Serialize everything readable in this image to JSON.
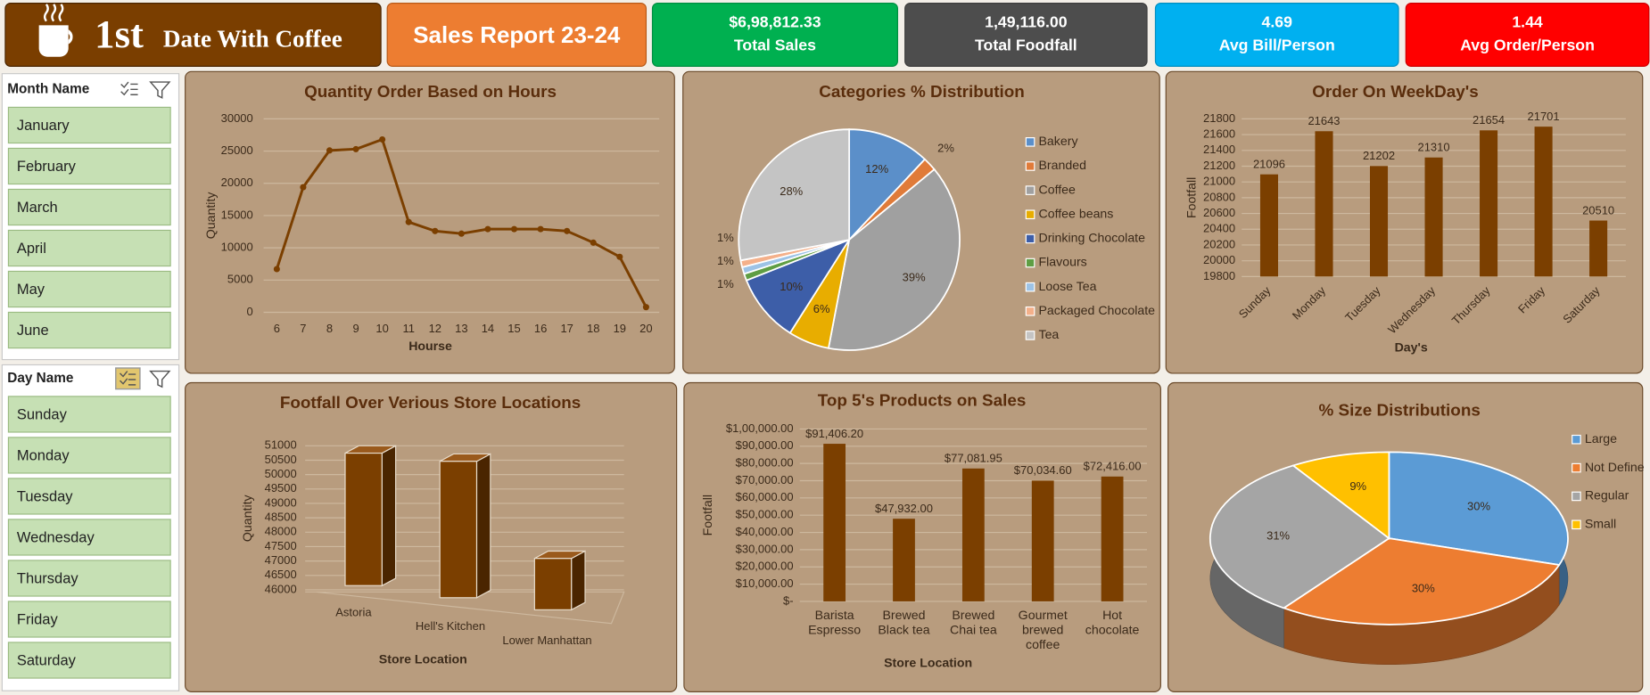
{
  "header": {
    "title_prefix": "1st",
    "title": "Date With Coffee",
    "report": "Sales Report 23-24"
  },
  "kpis": [
    {
      "value": "$6,98,812.33",
      "label": "Total Sales",
      "color": "#00b050"
    },
    {
      "value": "1,49,116.00",
      "label": "Total Foodfall",
      "color": "#4d4d4d"
    },
    {
      "value": "4.69",
      "label": "Avg Bill/Person",
      "color": "#00b0f0"
    },
    {
      "value": "1.44",
      "label": "Avg Order/Person",
      "color": "#ff0000"
    }
  ],
  "slicers": [
    {
      "title": "Month Name",
      "items": [
        "January",
        "February",
        "March",
        "April",
        "May",
        "June"
      ]
    },
    {
      "title": "Day Name",
      "items": [
        "Sunday",
        "Monday",
        "Tuesday",
        "Wednesday",
        "Thursday",
        "Friday",
        "Saturday"
      ]
    }
  ],
  "chart_data": [
    {
      "type": "line",
      "title": "Quantity Order Based on Hours",
      "x": [
        6,
        7,
        8,
        9,
        10,
        11,
        12,
        13,
        14,
        15,
        16,
        17,
        18,
        19,
        20
      ],
      "values": [
        6700,
        19400,
        25100,
        25300,
        26800,
        14000,
        12600,
        12200,
        12900,
        12900,
        12900,
        12600,
        10800,
        8600,
        800
      ],
      "color": "#7b3f00",
      "xlabel": "Hourse",
      "ylabel": "Quantity",
      "ylim": [
        0,
        30000
      ],
      "yticks": [
        0,
        5000,
        10000,
        15000,
        20000,
        25000,
        30000
      ],
      "grid": true
    },
    {
      "type": "pie",
      "title": "Categories % Distribution",
      "categories": [
        "Bakery",
        "Branded",
        "Coffee",
        "Coffee beans",
        "Drinking Chocolate",
        "Flavours",
        "Loose Tea",
        "Packaged Chocolate",
        "Tea"
      ],
      "values": [
        12,
        2,
        39,
        6,
        10,
        1,
        1,
        1,
        28
      ],
      "value_labels": [
        "12%",
        "2%",
        "39%",
        "6%",
        "10%",
        "1%",
        "1%",
        "1%",
        "28%"
      ],
      "colors": [
        "#5b8fc9",
        "#e07b39",
        "#a0a0a0",
        "#e8ad00",
        "#3d5ea8",
        "#5f9e44",
        "#9dc3e6",
        "#f4b08a",
        "#c4c4c4"
      ]
    },
    {
      "type": "bar",
      "title": "Order On WeekDay's",
      "categories": [
        "Sunday",
        "Monday",
        "Tuesday",
        "Wednesday",
        "Thursday",
        "Friday",
        "Saturday"
      ],
      "values": [
        21096,
        21643,
        21202,
        21310,
        21654,
        21701,
        20510
      ],
      "color": "#7b3f00",
      "xlabel": "Day's",
      "ylabel": "Footfall",
      "ylim": [
        19800,
        21800
      ],
      "yticks": [
        19800,
        20000,
        20200,
        20400,
        20600,
        20800,
        21000,
        21200,
        21400,
        21600,
        21800
      ],
      "grid": true
    },
    {
      "type": "bar3d",
      "title": "Footfall Over Verious Store Locations",
      "categories": [
        "Astoria",
        "Hell's Kitchen",
        "Lower Manhattan"
      ],
      "values": [
        50599,
        50735,
        47782
      ],
      "color": "#7b3f00",
      "xlabel": "Store Location",
      "ylabel": "Quantity",
      "ylim": [
        46000,
        51000
      ],
      "yticks": [
        46000,
        46500,
        47000,
        47500,
        48000,
        48500,
        49000,
        49500,
        50000,
        50500,
        51000
      ],
      "grid": true
    },
    {
      "type": "bar",
      "title": "Top 5's Products on Sales",
      "categories": [
        "Barista Espresso",
        "Brewed Black tea",
        "Brewed Chai tea",
        "Gourmet brewed coffee",
        "Hot chocolate"
      ],
      "values": [
        91406.2,
        47932.0,
        77081.95,
        70034.6,
        72416.0
      ],
      "value_labels": [
        "$91,406.20",
        "$47,932.00",
        "$77,081.95",
        "$70,034.60",
        "$72,416.00"
      ],
      "color": "#7b3f00",
      "xlabel": "Store Location",
      "ylabel": "Footfall",
      "ylim": [
        0,
        100000
      ],
      "yticks": [
        {
          "value": 0,
          "label": "$-"
        },
        {
          "value": 10000,
          "label": "$10,000.00"
        },
        {
          "value": 20000,
          "label": "$20,000.00"
        },
        {
          "value": 30000,
          "label": "$30,000.00"
        },
        {
          "value": 40000,
          "label": "$40,000.00"
        },
        {
          "value": 50000,
          "label": "$50,000.00"
        },
        {
          "value": 60000,
          "label": "$60,000.00"
        },
        {
          "value": 70000,
          "label": "$70,000.00"
        },
        {
          "value": 80000,
          "label": "$80,000.00"
        },
        {
          "value": 90000,
          "label": "$90,000.00"
        },
        {
          "value": 100000,
          "label": "$1,00,000.00"
        }
      ],
      "grid": true
    },
    {
      "type": "pie3d",
      "title": "% Size Distributions",
      "categories": [
        "Large",
        "Not Define",
        "Regular",
        "Small"
      ],
      "values": [
        30,
        30,
        31,
        9
      ],
      "value_labels": [
        "30%",
        "30%",
        "31%",
        "9%"
      ],
      "colors": [
        "#5b9bd5",
        "#ed7d31",
        "#a5a5a5",
        "#ffc000"
      ]
    }
  ]
}
